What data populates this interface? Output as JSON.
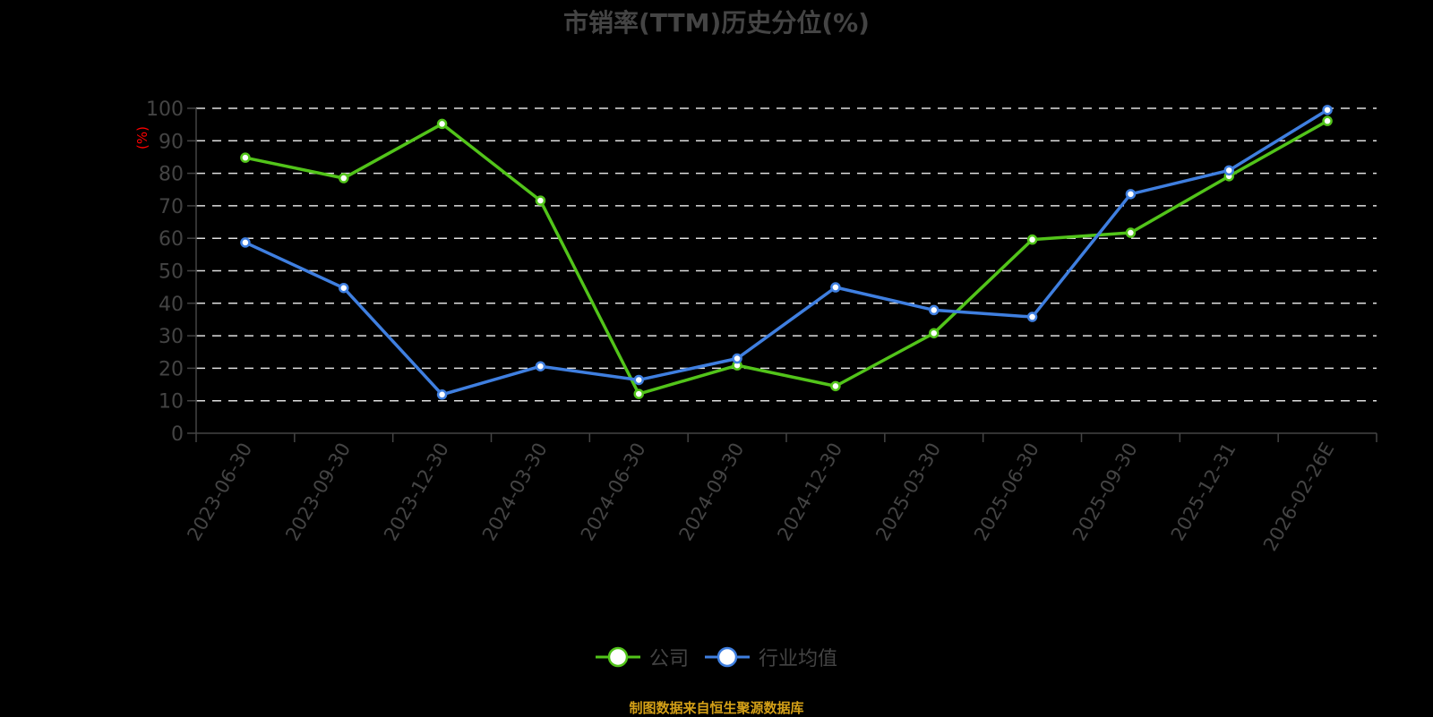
{
  "title": "市销率(TTM)历史分位(%)",
  "y_unit_label": "(%)",
  "legend": [
    {
      "label": "公司",
      "color": "#52c41a"
    },
    {
      "label": "行业均值",
      "color": "#3f7fe0"
    }
  ],
  "footer": "制图数据来自恒生聚源数据库",
  "chart_data": {
    "type": "line",
    "title": "市销率(TTM)历史分位(%)",
    "xlabel": "",
    "ylabel": "(%)",
    "ylim": [
      0,
      100
    ],
    "yticks": [
      0,
      10,
      20,
      30,
      40,
      50,
      60,
      70,
      80,
      90,
      100
    ],
    "grid": true,
    "legend_position": "bottom",
    "categories": [
      "2023-06-30",
      "2023-09-30",
      "2023-12-30",
      "2024-03-30",
      "2024-06-30",
      "2024-09-30",
      "2024-12-30",
      "2025-03-30",
      "2025-06-30",
      "2025-09-30",
      "2025-12-31",
      "2026-02-26E"
    ],
    "series": [
      {
        "name": "公司",
        "color": "#52c41a",
        "values": [
          84.8,
          78.5,
          95.2,
          71.6,
          12.1,
          20.9,
          14.5,
          30.8,
          59.6,
          61.7,
          79.1,
          96.1
        ]
      },
      {
        "name": "行业均值",
        "color": "#3f7fe0",
        "values": [
          58.7,
          44.7,
          11.9,
          20.6,
          16.4,
          23.0,
          44.9,
          37.9,
          35.8,
          73.6,
          80.9,
          99.5
        ]
      }
    ]
  }
}
